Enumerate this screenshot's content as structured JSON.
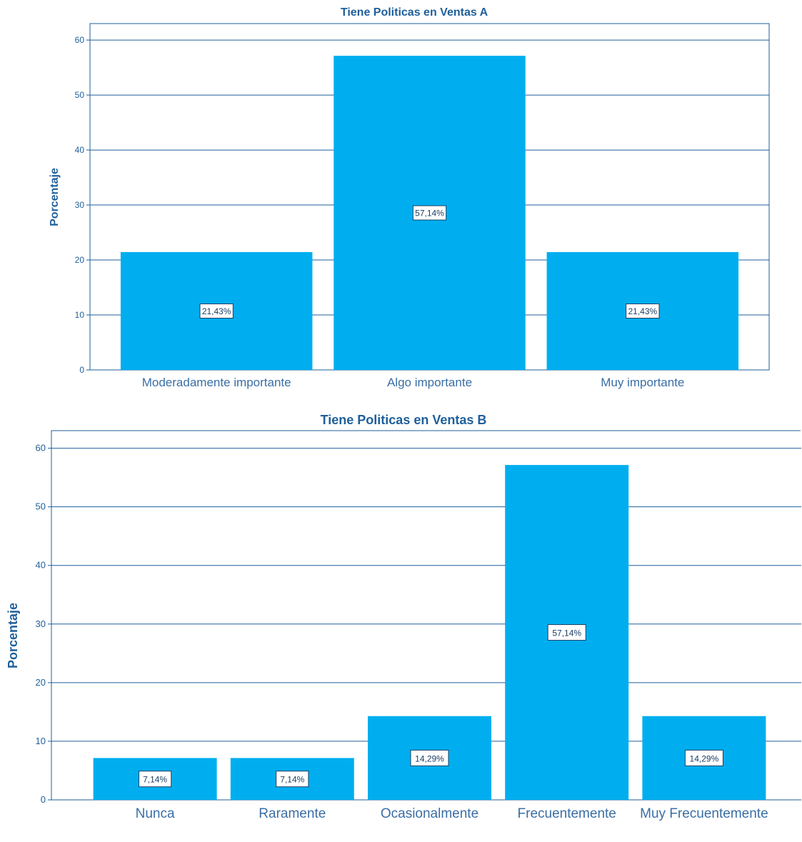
{
  "colors": {
    "bar": "#00aeef",
    "axis": "#1f5f9a",
    "grid": "#1f5f9a"
  },
  "chart_data": [
    {
      "type": "bar",
      "title": "Tiene Politicas en Ventas A",
      "xlabel": "",
      "ylabel": "Porcentaje",
      "ylim": [
        0,
        63
      ],
      "yticks": [
        0,
        10,
        20,
        30,
        40,
        50,
        60
      ],
      "grid": true,
      "categories": [
        "Moderadamente importante",
        "Algo importante",
        "Muy importante"
      ],
      "values": [
        21.43,
        57.14,
        21.43
      ],
      "data_labels": [
        "21,43%",
        "57,14%",
        "21,43%"
      ]
    },
    {
      "type": "bar",
      "title": "Tiene Politicas en Ventas B",
      "xlabel": "",
      "ylabel": "Porcentaje",
      "ylim": [
        0,
        63
      ],
      "yticks": [
        0,
        10,
        20,
        30,
        40,
        50,
        60
      ],
      "grid": true,
      "categories": [
        "Nunca",
        "Raramente",
        "Ocasionalmente",
        "Frecuentemente",
        "Muy Frecuentemente"
      ],
      "values": [
        7.14,
        7.14,
        14.29,
        57.14,
        14.29
      ],
      "data_labels": [
        "7,14%",
        "7,14%",
        "14,29%",
        "57,14%",
        "14,29%"
      ]
    }
  ]
}
